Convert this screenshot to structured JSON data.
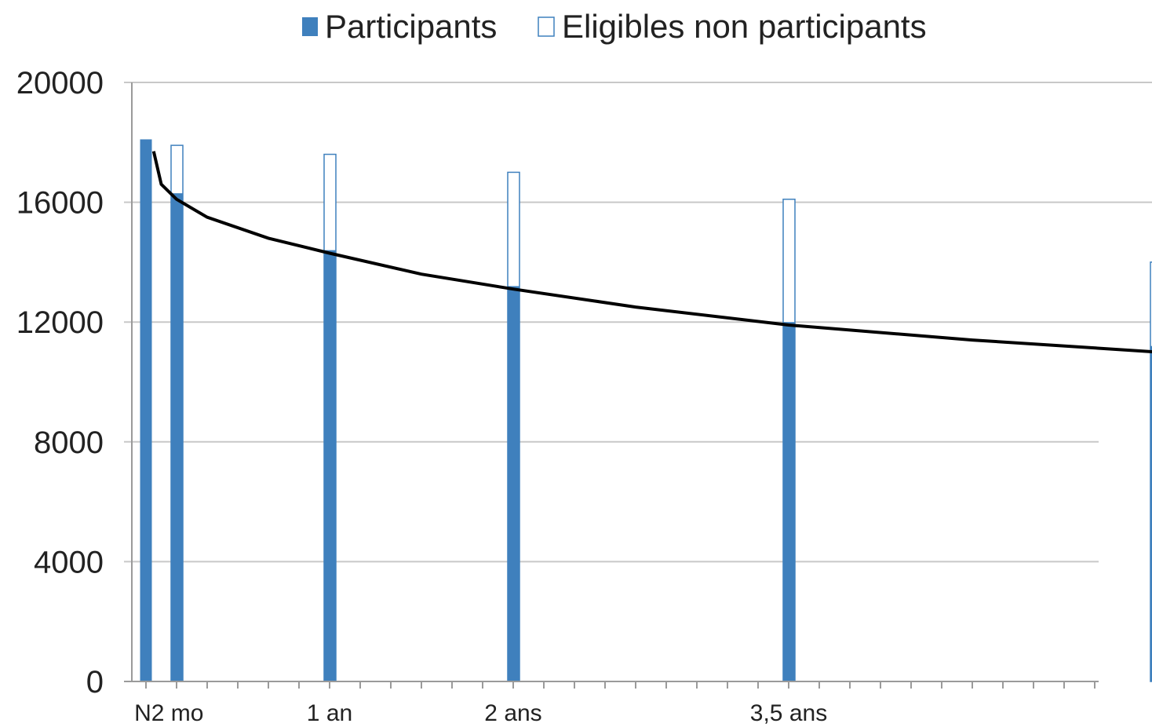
{
  "chart_data": {
    "type": "bar",
    "title": "",
    "xlabel": "",
    "ylabel": "",
    "ylim": [
      0,
      20000
    ],
    "yticks": [
      "0",
      "4000",
      "8000",
      "12000",
      "16000",
      "20000"
    ],
    "grid": true,
    "legend": {
      "position": "top",
      "entries": [
        {
          "name": "Participants",
          "style": "filled"
        },
        {
          "name": "Eligibles non participants",
          "style": "outline"
        }
      ]
    },
    "x_axis_labels": [
      "N2 mo",
      "1 an",
      "2 ans",
      "3,5 ans"
    ],
    "categories_months": [
      0,
      2,
      12,
      24,
      42,
      66
    ],
    "series": [
      {
        "name": "Participants",
        "values": [
          18100,
          16300,
          14400,
          13200,
          12000,
          11200
        ]
      },
      {
        "name": "Eligibles non participants",
        "values": [
          null,
          17900,
          17600,
          17000,
          16100,
          14000
        ]
      }
    ],
    "trend_line": {
      "x_months": [
        0.5,
        1,
        2,
        4,
        8,
        12,
        18,
        24,
        32,
        42,
        54,
        66
      ],
      "values": [
        17700,
        16600,
        16100,
        15500,
        14800,
        14300,
        13600,
        13100,
        12500,
        11900,
        11400,
        11000
      ]
    },
    "colors": {
      "participants": "#3f80bd",
      "outline": "#3f80bd",
      "grid": "#c8c8c8",
      "axis": "#9a9a9a",
      "line": "#000000"
    }
  }
}
